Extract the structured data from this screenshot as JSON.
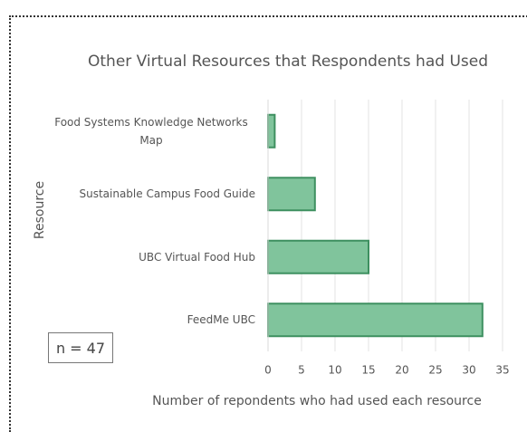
{
  "chart_data": {
    "type": "bar",
    "orientation": "horizontal",
    "title": "Other Virtual Resources that Respondents had Used",
    "x_label": "Number of repondents who had used each resource",
    "y_label": "Resource",
    "annotation": "n = 47",
    "categories": [
      "Food Systems Knowledge Networks Map",
      "Sustainable Campus Food Guide",
      "UBC Virtual Food Hub",
      "FeedMe UBC"
    ],
    "values": [
      1,
      7,
      15,
      32
    ],
    "color": "#80c49c",
    "edge_color": "#3e9060",
    "xlim": [
      0,
      35
    ],
    "xticks": [
      0,
      5,
      10,
      15,
      20,
      25,
      30,
      35
    ],
    "grid": true
  }
}
